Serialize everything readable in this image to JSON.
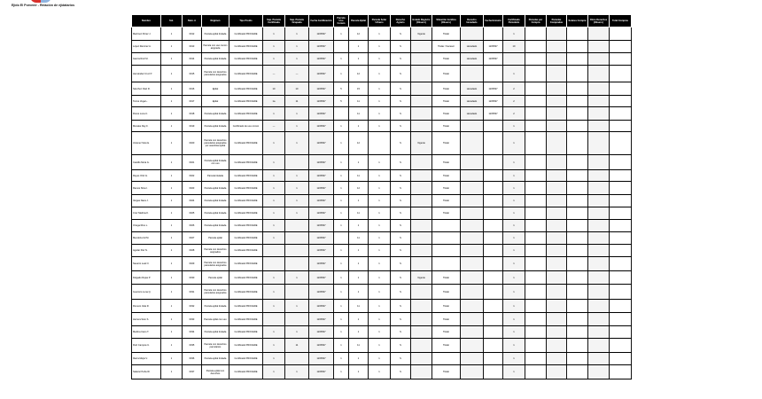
{
  "header": {
    "title": "Ejido El Porvenir - Relación de ejidatarios"
  },
  "table": {
    "columns": [
      "Nombre",
      "Sol.",
      "Núm. A",
      "Régimen",
      "Tipo Predio",
      "Sup. Parcela Certificada",
      "Sup. Parcela Ocupada",
      "Fecha Certificación",
      "Parcela Uso Común",
      "Parcela Ejidal",
      "Parcela Solar Urbano",
      "Derecho Agrario",
      "Estado Registro (Observ.)",
      "Situación Jurídica (Observ.)",
      "Derecho Heredado",
      "Fecha Emisión",
      "Certificado Parcelario",
      "Parcelas por Compra",
      "Parcelas Compradas",
      "Solares Compra",
      "Otros Derechos (Observ.)",
      "Total Compras"
    ],
    "widths": [
      33,
      24,
      22,
      31,
      38,
      25,
      27,
      28,
      17,
      22,
      25,
      23,
      24,
      32,
      26,
      22,
      25,
      24,
      23,
      24,
      24,
      25
    ],
    "rows": [
      {
        "h": 15,
        "cells": [
          "Martínez Pérez J.",
          "1",
          "0012",
          "Parcela ejidal titulada",
          "Certificado PROCEDE",
          "1",
          "1",
          "12/05/97",
          "1",
          "12",
          "1",
          "S",
          "Vigente",
          "Titular",
          "",
          "",
          "1",
          "",
          "",
          "",
          "",
          ""
        ]
      },
      {
        "h": 14,
        "cells": [
          "López Ramírez A.",
          "1",
          "0013",
          "Parcela con uso común asignada",
          "Certificado PROCEDE",
          "1",
          "1",
          "12/05/97",
          "",
          "1",
          "1",
          "S",
          "",
          "Titular / Sucesor",
          "Heredado",
          "12/05/97",
          "10",
          "",
          "",
          "",
          "",
          ""
        ]
      },
      {
        "h": 14,
        "cells": [
          "García Ruiz M.",
          "1",
          "0014",
          "Parcela ejidal titulada",
          "Certificado PROCEDE",
          "1",
          "1",
          "12/05/97",
          "1",
          "1",
          "1",
          "S",
          "",
          "Titular",
          "Heredado",
          "12/05/97",
          "",
          "",
          "",
          "",
          "",
          ""
        ]
      },
      {
        "h": 19,
        "cells": [
          "Hernández Cruz P.",
          "1",
          "0015",
          "Parcela con derechos parcelarios asignados",
          "Certificado PROCEDE",
          "—",
          "—",
          "12/05/97",
          "1",
          "12",
          "1",
          "S",
          "",
          "Titular",
          "",
          "",
          "1",
          "",
          "",
          "",
          "",
          ""
        ]
      },
      {
        "h": 15,
        "cells": [
          "Sánchez Díaz R.",
          "1",
          "0016",
          "Ejidal",
          "Certificado PROCEDE",
          "10",
          "10",
          "12/05/97",
          "5",
          "15",
          "1",
          "S",
          "",
          "Titular",
          "Heredado",
          "12/05/97",
          "2",
          "",
          "",
          "",
          "",
          ""
        ]
      },
      {
        "h": 13,
        "cells": [
          "Torres Vega L.",
          "1",
          "0017",
          "Ejidal",
          "Certificado PROCEDE",
          "1a",
          "11",
          "12/05/97",
          "5",
          "11",
          "1",
          "S",
          "",
          "Titular",
          "Heredado",
          "12/05/97",
          "2",
          "",
          "",
          "",
          "",
          ""
        ]
      },
      {
        "h": 15,
        "cells": [
          "Flores Luna C.",
          "1",
          "0018",
          "Parcela ejidal titulada",
          "Certificado PROCEDE",
          "1",
          "1",
          "12/05/97",
          "",
          "11",
          "1",
          "S",
          "",
          "Titular",
          "Heredado",
          "12/05/97",
          "2",
          "",
          "",
          "",
          "",
          ""
        ]
      },
      {
        "h": 13,
        "cells": [
          "Morales Rey F.",
          "1",
          "0019",
          "Parcela ejidal titulada",
          "Certificado de uso común",
          "—",
          "1",
          "12/05/97",
          "1",
          "1",
          "1",
          "S",
          "",
          "Titular",
          "",
          "",
          "1",
          "",
          "",
          "",
          "",
          ""
        ]
      },
      {
        "h": 26,
        "cells": [
          "Jiménez Soto E.",
          "1",
          "0020",
          "Parcela con derechos parcelarios asignados por asamblea ejidal",
          "Certificado PROCEDE",
          "1",
          "1",
          "12/05/97",
          "1",
          "12",
          "",
          "S",
          "Vigente",
          "Titular",
          "",
          "",
          "1",
          "",
          "",
          "",
          "",
          ""
        ]
      },
      {
        "h": 17,
        "cells": [
          "Castillo Mora G.",
          "1",
          "0021",
          "Parcela ejidal titulada con uso",
          "Certificado PROCEDE",
          "1",
          "",
          "12/05/97",
          "1",
          "1",
          "1",
          "S",
          "",
          "Titular",
          "",
          "",
          "1",
          "",
          "",
          "",
          "",
          ""
        ]
      },
      {
        "h": 13,
        "cells": [
          "Reyes Ortiz H.",
          "1",
          "0022",
          "Parcela titulada",
          "Certificado PROCEDE",
          "1",
          "1",
          "12/05/97",
          "1",
          "11",
          "1",
          "S",
          "",
          "Titular",
          "",
          "",
          "1",
          "",
          "",
          "",
          "",
          ""
        ]
      },
      {
        "h": 15,
        "cells": [
          "Ramos Silva I.",
          "1",
          "0023",
          "Parcela ejidal titulada",
          "Certificado PROCEDE",
          "1",
          "1",
          "12/05/97",
          "1",
          "12",
          "1",
          "S",
          "",
          "Titular",
          "",
          "",
          "1",
          "",
          "",
          "",
          "",
          ""
        ]
      },
      {
        "h": 14,
        "cells": [
          "Vargas Nava J.",
          "1",
          "0024",
          "Parcela ejidal titulada",
          "Certificado PROCEDE",
          "1",
          "1",
          "12/05/97",
          "1",
          "1",
          "1",
          "S",
          "",
          "Titular",
          "",
          "",
          "1",
          "",
          "",
          "",
          "",
          ""
        ]
      },
      {
        "h": 14,
        "cells": [
          "Cruz Medina K.",
          "1",
          "0025",
          "Parcela ejidal titulada",
          "Certificado PROCEDE",
          "1",
          "1",
          "12/05/97",
          "1",
          "11",
          "1",
          "S",
          "",
          "Titular",
          "",
          "",
          "1",
          "",
          "",
          "",
          "",
          ""
        ]
      },
      {
        "h": 14,
        "cells": [
          "Ortega Ríos L.",
          "1",
          "0026",
          "Parcela ejidal titulada",
          "Certificado PROCEDE",
          "1",
          "",
          "12/05/97",
          "1",
          "1",
          "1",
          "S",
          "",
          "",
          "",
          "",
          "1",
          "",
          "",
          "",
          "",
          ""
        ]
      },
      {
        "h": 14,
        "cells": [
          "Mendoza Gil M.",
          "1",
          "0027",
          "Parcela ejidal",
          "Certificado PROCEDE",
          "1",
          "",
          "12/05/97",
          "",
          "11",
          "1",
          "S",
          "",
          "",
          "",
          "",
          "1",
          "",
          "",
          "",
          "",
          ""
        ]
      },
      {
        "h": 14,
        "cells": [
          "Aguilar Paz N.",
          "1",
          "0028",
          "Parcela con derechos asignados",
          "Certificado PROCEDE",
          "",
          "",
          "12/05/97",
          "1",
          "1",
          "1",
          "S",
          "",
          "",
          "",
          "",
          "1",
          "",
          "",
          "",
          "",
          ""
        ]
      },
      {
        "h": 16,
        "cells": [
          "Navarro Leal O.",
          "1",
          "0029",
          "Parcela con derechos parcelarios asignados",
          "Certificado PROCEDE",
          "",
          "",
          "12/05/97",
          "1",
          "1",
          "1",
          "S",
          "",
          "",
          "",
          "",
          "1",
          "",
          "",
          "",
          "",
          ""
        ]
      },
      {
        "h": 15,
        "cells": [
          "Delgado Rojas P.",
          "1",
          "0030",
          "Parcela ejidal",
          "Certificado PROCEDE",
          "1",
          "1",
          "12/05/97",
          "1",
          "1",
          "1",
          "S",
          "Vigente",
          "Titular",
          "",
          "",
          "1",
          "",
          "",
          "",
          "",
          ""
        ]
      },
      {
        "h": 17,
        "cells": [
          "Guerrero Luna Q.",
          "1",
          "0031",
          "Parcela con derechos parcelarios asignados",
          "Certificado PROCEDE",
          "1",
          "",
          "12/05/97",
          "1",
          "1",
          "1",
          "S",
          "",
          "Titular",
          "",
          "",
          "1",
          "",
          "",
          "",
          "",
          ""
        ]
      },
      {
        "h": 15,
        "cells": [
          "Romero Vela R.",
          "1",
          "0032",
          "Parcela ejidal titulada",
          "Certificado PROCEDE",
          "1",
          "1",
          "12/05/97",
          "1",
          "11",
          "1",
          "S",
          "",
          "Titular",
          "",
          "",
          "1",
          "",
          "",
          "",
          "",
          ""
        ]
      },
      {
        "h": 15,
        "cells": [
          "Herrera Soto S.",
          "1",
          "0033",
          "Parcela ejidal con uso",
          "Certificado PROCEDE",
          "",
          "",
          "12/05/97",
          "1",
          "1",
          "1",
          "S",
          "",
          "Titular",
          "",
          "",
          "1",
          "",
          "",
          "",
          "",
          ""
        ]
      },
      {
        "h": 14,
        "cells": [
          "Medina Cano T.",
          "1",
          "0034",
          "Parcela ejidal titulada",
          "Certificado PROCEDE",
          "1",
          "1",
          "12/05/97",
          "1",
          "1",
          "1",
          "S",
          "",
          "Titular",
          "",
          "",
          "1",
          "",
          "",
          "",
          "",
          ""
        ]
      },
      {
        "h": 16,
        "cells": [
          "Ruiz Campos U.",
          "1",
          "0035",
          "Parcela con derechos parcelarios",
          "Certificado PROCEDE",
          "1",
          "11",
          "12/05/97",
          "1",
          "11",
          "1",
          "S",
          "",
          "Titular",
          "",
          "",
          "1",
          "",
          "",
          "",
          "",
          ""
        ]
      },
      {
        "h": 14,
        "cells": [
          "Ibarra Mejía V.",
          "1",
          "0036",
          "Parcela ejidal titulada",
          "Certificado PROCEDE",
          "1",
          "",
          "12/05/97",
          "1",
          "1",
          "1",
          "S",
          "",
          "",
          "",
          "",
          "1",
          "",
          "",
          "",
          "",
          ""
        ]
      },
      {
        "h": 16,
        "cells": [
          "Salazar Peña W.",
          "1",
          "0037",
          "Parcela ejidal con derechos",
          "Certificado PROCEDE",
          "1",
          "1",
          "12/05/97",
          "1",
          "1",
          "1",
          "S",
          "",
          "Titular",
          "",
          "",
          "1",
          "",
          "",
          "",
          "",
          ""
        ]
      }
    ]
  }
}
